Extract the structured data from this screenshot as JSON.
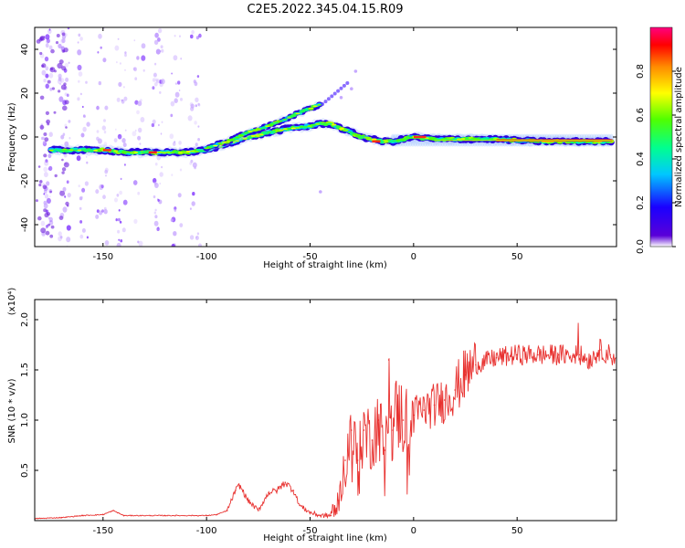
{
  "title": "C2E5.2022.345.04.15.R09",
  "chart_data": [
    {
      "type": "heatmap",
      "xlabel": "Height of straight line (km)",
      "ylabel": "Frequency (Hz)",
      "xlim": [
        -183,
        98
      ],
      "ylim": [
        -50,
        50
      ],
      "xticks": [
        -150,
        -100,
        -50,
        0,
        50
      ],
      "yticks": [
        -40,
        -20,
        0,
        20,
        40
      ],
      "colorbar": {
        "label": "Normalized spectral amplitude",
        "range": [
          0,
          1
        ],
        "ticks": [
          "0.0",
          "0.2",
          "0.4",
          "0.6",
          "0.8"
        ]
      },
      "ridge": {
        "x": [
          -175,
          -160,
          -150,
          -140,
          -130,
          -120,
          -110,
          -100,
          -90,
          -80,
          -70,
          -60,
          -50,
          -45,
          -40,
          -35,
          -30,
          -25,
          -20,
          -15,
          -10,
          -5,
          0,
          10,
          20,
          40,
          60,
          80,
          95
        ],
        "y": [
          -6,
          -6,
          -6,
          -7,
          -7,
          -7,
          -7,
          -6,
          -3,
          0,
          2,
          4,
          5,
          6,
          6,
          4,
          2,
          0,
          -1,
          -2,
          -2,
          -1,
          0,
          -1,
          -1,
          -1,
          -2,
          -2,
          -2
        ]
      },
      "branch": {
        "x": [
          -100,
          -90,
          -80,
          -70,
          -60,
          -50,
          -45
        ],
        "y": [
          -5,
          -2,
          2,
          5,
          9,
          13,
          15
        ]
      }
    },
    {
      "type": "line",
      "xlabel": "Height of straight line (km)",
      "ylabel": "SNR (10 * v/v)",
      "yscale_label": "(x10⁴)",
      "xlim": [
        -183,
        98
      ],
      "ylim": [
        0,
        2.2
      ],
      "xticks": [
        -150,
        -100,
        -50,
        0,
        50
      ],
      "yticks": [
        0.5,
        1.0,
        1.5,
        2.0
      ],
      "series": [
        {
          "name": "SNR",
          "color": "#e8312f",
          "x": [
            -183,
            -170,
            -160,
            -150,
            -145,
            -140,
            -120,
            -100,
            -95,
            -90,
            -86,
            -84,
            -80,
            -75,
            -70,
            -66,
            -62,
            -58,
            -55,
            -50,
            -45,
            -40,
            -36,
            -33,
            -30,
            -27,
            -24,
            -20,
            -17,
            -14,
            -12,
            -10,
            -8,
            -5,
            0,
            5,
            10,
            15,
            20,
            25,
            30,
            40,
            50,
            60,
            70,
            80,
            85,
            90,
            95,
            98
          ],
          "y": [
            0.02,
            0.03,
            0.05,
            0.06,
            0.1,
            0.05,
            0.05,
            0.05,
            0.06,
            0.1,
            0.3,
            0.35,
            0.2,
            0.1,
            0.28,
            0.3,
            0.38,
            0.3,
            0.15,
            0.08,
            0.05,
            0.05,
            0.2,
            0.6,
            0.9,
            0.6,
            0.9,
            0.8,
            1.0,
            0.7,
            1.6,
            0.9,
            1.1,
            1.0,
            1.05,
            1.1,
            1.15,
            1.2,
            1.3,
            1.45,
            1.55,
            1.62,
            1.65,
            1.65,
            1.65,
            1.65,
            1.6,
            1.7,
            1.65,
            1.62
          ]
        }
      ]
    }
  ]
}
